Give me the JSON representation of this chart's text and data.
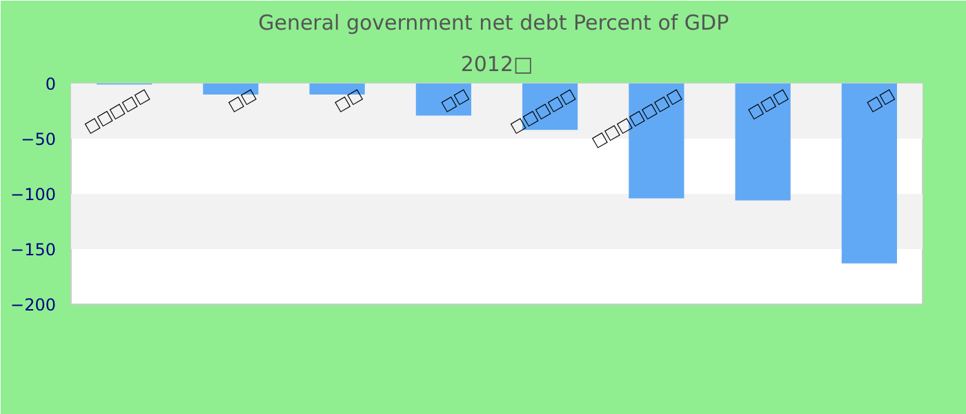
{
  "chart_data": {
    "type": "bar",
    "title": "General government net debt  Percent of GDP",
    "subtitle": "2012□",
    "categories": [
      "□□□□□",
      "□□",
      "□□",
      "□□",
      "□□□□□",
      "□□□□□□□",
      "□□□",
      "□□"
    ],
    "values": [
      -1,
      -10,
      -10,
      -29,
      -42,
      -104,
      -106,
      -163
    ],
    "color": "#62a9f5",
    "ylim": [
      -200,
      0
    ],
    "yticks": [
      -200,
      -150,
      -100,
      -50,
      0
    ],
    "bands": [
      {
        "axis": "y",
        "from": -50,
        "to": 0,
        "color": "#f2f2f2"
      },
      {
        "axis": "y",
        "from": -150,
        "to": -100,
        "color": "#f2f2f2"
      }
    ]
  }
}
